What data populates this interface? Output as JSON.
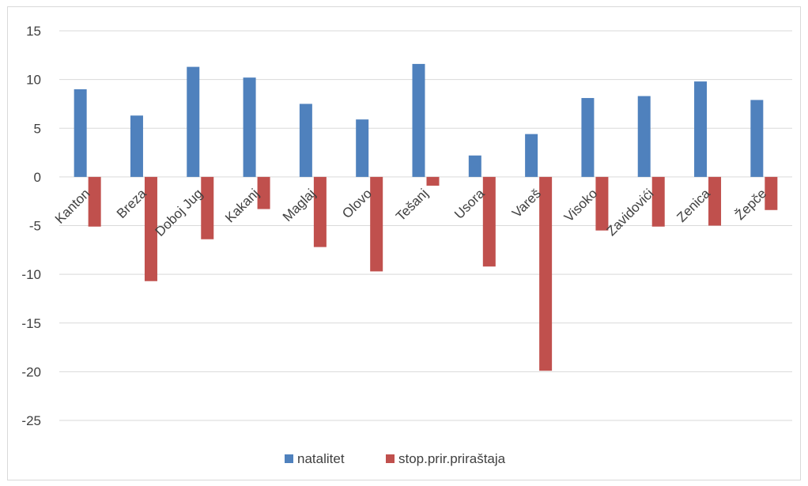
{
  "colors": {
    "natalitet": "#4f81bd",
    "stop": "#c0504d",
    "grid": "#d9d9d9",
    "text": "#404040"
  },
  "chart_data": {
    "type": "bar",
    "categories": [
      "Kanton",
      "Breza",
      "Doboj Jug",
      "Kakanj",
      "Maglaj",
      "Olovo",
      "Tešanj",
      "Usora",
      "Vareš",
      "Visoko",
      "Zavidovići",
      "Zenica",
      "Žepče"
    ],
    "series": [
      {
        "name": "natalitet",
        "color": "#4f81bd",
        "values": [
          9.0,
          6.3,
          11.3,
          10.2,
          7.5,
          5.9,
          11.6,
          2.2,
          4.4,
          8.1,
          8.3,
          9.8,
          7.9
        ]
      },
      {
        "name": "stop.prir.priraštaja",
        "color": "#c0504d",
        "values": [
          -5.1,
          -10.7,
          -6.4,
          -3.3,
          -7.2,
          -9.7,
          -0.9,
          -9.2,
          -19.9,
          -5.5,
          -5.1,
          -5.0,
          -3.4
        ]
      }
    ],
    "yticks": [
      15,
      10,
      5,
      0,
      -5,
      -10,
      -15,
      -20,
      -25
    ],
    "ylim": [
      -25,
      15
    ],
    "grid": true,
    "legend_position": "bottom"
  }
}
